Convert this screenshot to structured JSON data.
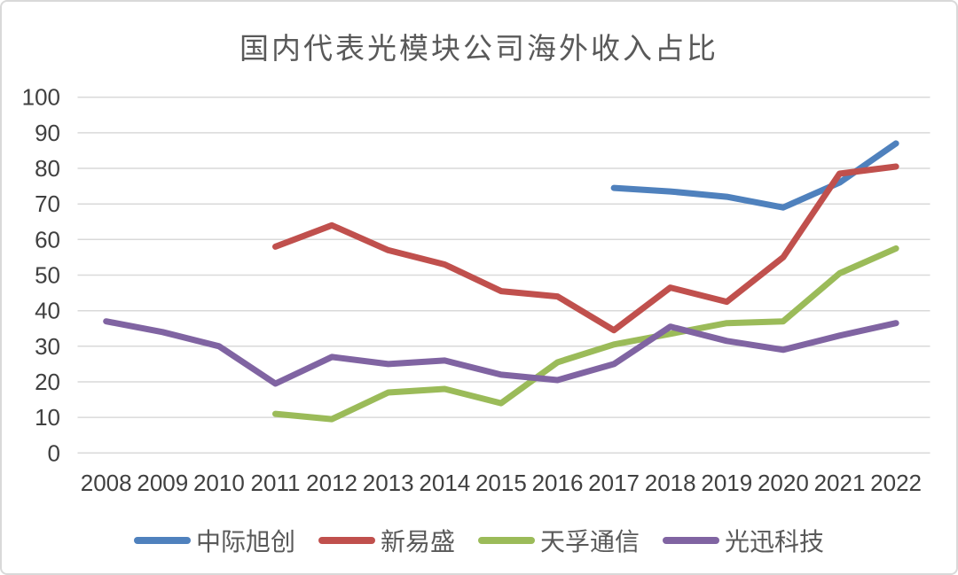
{
  "chart_data": {
    "type": "line",
    "title": "国内代表光模块公司海外收入占比",
    "categories": [
      "2008",
      "2009",
      "2010",
      "2011",
      "2012",
      "2013",
      "2014",
      "2015",
      "2016",
      "2017",
      "2018",
      "2019",
      "2020",
      "2021",
      "2022"
    ],
    "series": [
      {
        "name": "中际旭创",
        "slug": "zhongji-xuchuang",
        "color": "#4F81BD",
        "values": [
          null,
          null,
          null,
          null,
          null,
          null,
          null,
          null,
          null,
          74.5,
          73.5,
          72,
          69,
          76,
          87
        ]
      },
      {
        "name": "新易盛",
        "slug": "xinyisheng",
        "color": "#C0504D",
        "values": [
          null,
          null,
          null,
          58,
          64,
          57,
          53,
          45.5,
          44,
          34.5,
          46.5,
          42.5,
          55,
          78.5,
          80.5
        ]
      },
      {
        "name": "天孚通信",
        "slug": "tianfu-tongxin",
        "color": "#9BBB59",
        "values": [
          null,
          null,
          null,
          11,
          9.5,
          17,
          18,
          14,
          25.5,
          30.5,
          33.5,
          36.5,
          37,
          50.5,
          57.5
        ]
      },
      {
        "name": "光迅科技",
        "slug": "guangxun-keji",
        "color": "#8064A2",
        "values": [
          37,
          34,
          30,
          19.5,
          27,
          25,
          26,
          22,
          20.5,
          25,
          35.5,
          31.5,
          29,
          33,
          36.5
        ]
      }
    ],
    "ylim": [
      0,
      100
    ],
    "y_tick_step": 10,
    "grid": true,
    "legend_position": "bottom",
    "xlabel": "",
    "ylabel": ""
  },
  "colors": {
    "grid": "#D9D9D9",
    "axis_text": "#404040",
    "title_text": "#595959",
    "frame_border": "#D9D9D9",
    "background": "#FFFFFF"
  }
}
